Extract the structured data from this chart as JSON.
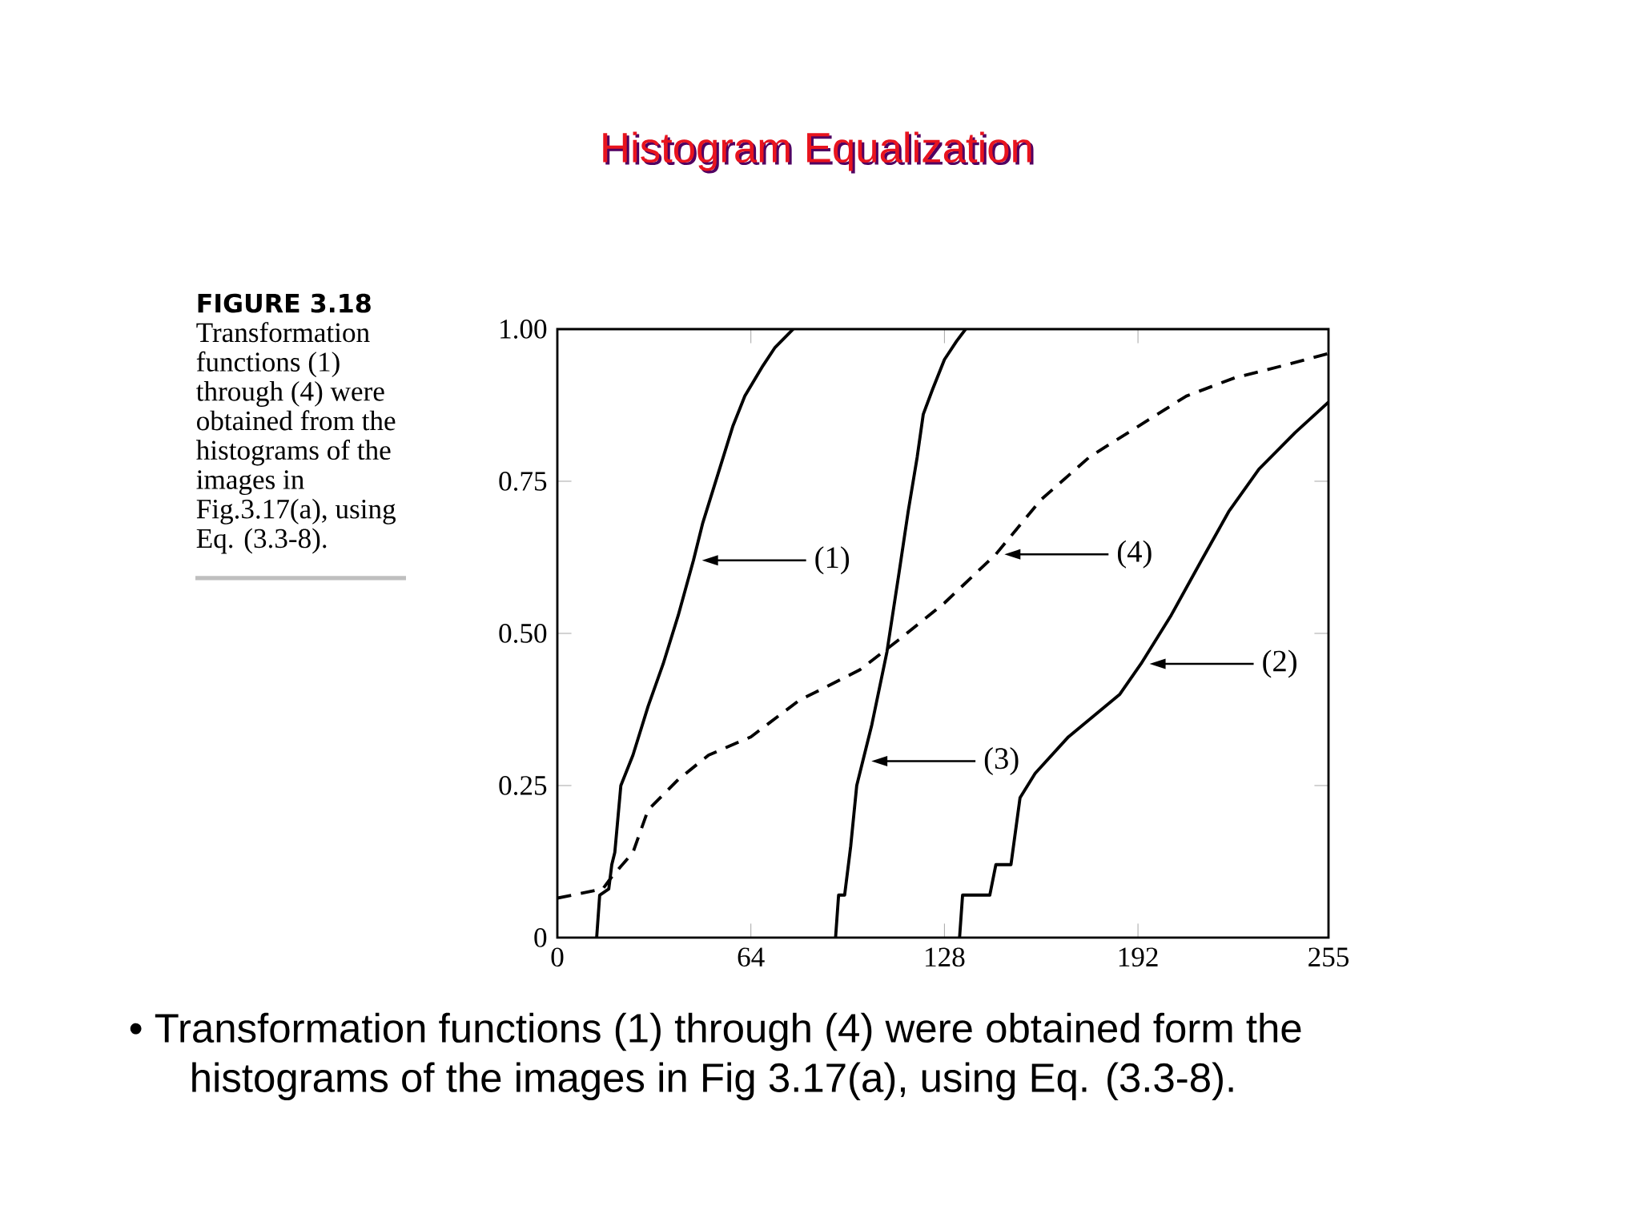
{
  "chart_data": {
    "type": "line",
    "title": "Histogram Equalization",
    "annotations": [
      "FIGURE 3.18",
      "Transformation functions (1) through (4) were obtained from the histograms of the images in Fig.3.17(a), using Eq. (3.3-8).",
      "• Transformation functions (1) through (4) were obtained form the histograms of the images in Fig 3.17(a), using Eq. (3.3-8).",
      "(1)",
      "(2)",
      "(3)",
      "(4)"
    ],
    "xlim": [
      0,
      255
    ],
    "ylim": [
      0,
      1
    ],
    "xticks": [
      0,
      64,
      128,
      192,
      255
    ],
    "yticks": [
      0,
      {
        "value": 0.25,
        "label": "0.25"
      },
      {
        "value": 0.5,
        "label": "0.50"
      },
      {
        "value": 0.75,
        "label": "0.75"
      },
      {
        "value": 1,
        "label": "1.00"
      }
    ],
    "grid": false,
    "marker": "none",
    "series": [
      {
        "color": "#000000",
        "line_style": "solid",
        "x": [
          13,
          14,
          17,
          18,
          19,
          21,
          25,
          30,
          35,
          40,
          45,
          48,
          53,
          58,
          62,
          68,
          72,
          78
        ],
        "values": [
          0,
          0.07,
          0.08,
          0.12,
          0.14,
          0.25,
          0.3,
          0.38,
          0.45,
          0.53,
          0.62,
          0.68,
          0.76,
          0.84,
          0.89,
          0.94,
          0.97,
          1.0
        ]
      },
      {
        "color": "#000000",
        "line_style": "solid",
        "x": [
          133,
          134,
          143,
          145,
          150,
          153,
          158,
          169,
          186,
          193,
          203,
          213,
          222,
          232,
          244,
          255
        ],
        "values": [
          0,
          0.07,
          0.07,
          0.12,
          0.12,
          0.23,
          0.27,
          0.33,
          0.4,
          0.45,
          0.53,
          0.62,
          0.7,
          0.77,
          0.83,
          0.88
        ]
      },
      {
        "color": "#000000",
        "line_style": "solid",
        "x": [
          92,
          93,
          95,
          97,
          99,
          101,
          104,
          109,
          113,
          116,
          119,
          121,
          124,
          128,
          132,
          135
        ],
        "values": [
          0,
          0.07,
          0.07,
          0.15,
          0.25,
          0.29,
          0.35,
          0.47,
          0.6,
          0.7,
          0.79,
          0.86,
          0.9,
          0.95,
          0.98,
          1.0
        ]
      },
      {
        "color": "#000000",
        "line_style": "dashed",
        "x": [
          0,
          15,
          18,
          25,
          30,
          40,
          50,
          64,
          80,
          100,
          113,
          128,
          145,
          160,
          176,
          192,
          208,
          224,
          240,
          255
        ],
        "values": [
          0.065,
          0.08,
          0.1,
          0.14,
          0.21,
          0.26,
          0.3,
          0.33,
          0.39,
          0.44,
          0.49,
          0.55,
          0.63,
          0.72,
          0.79,
          0.84,
          0.89,
          0.92,
          0.94,
          0.96
        ]
      }
    ]
  }
}
